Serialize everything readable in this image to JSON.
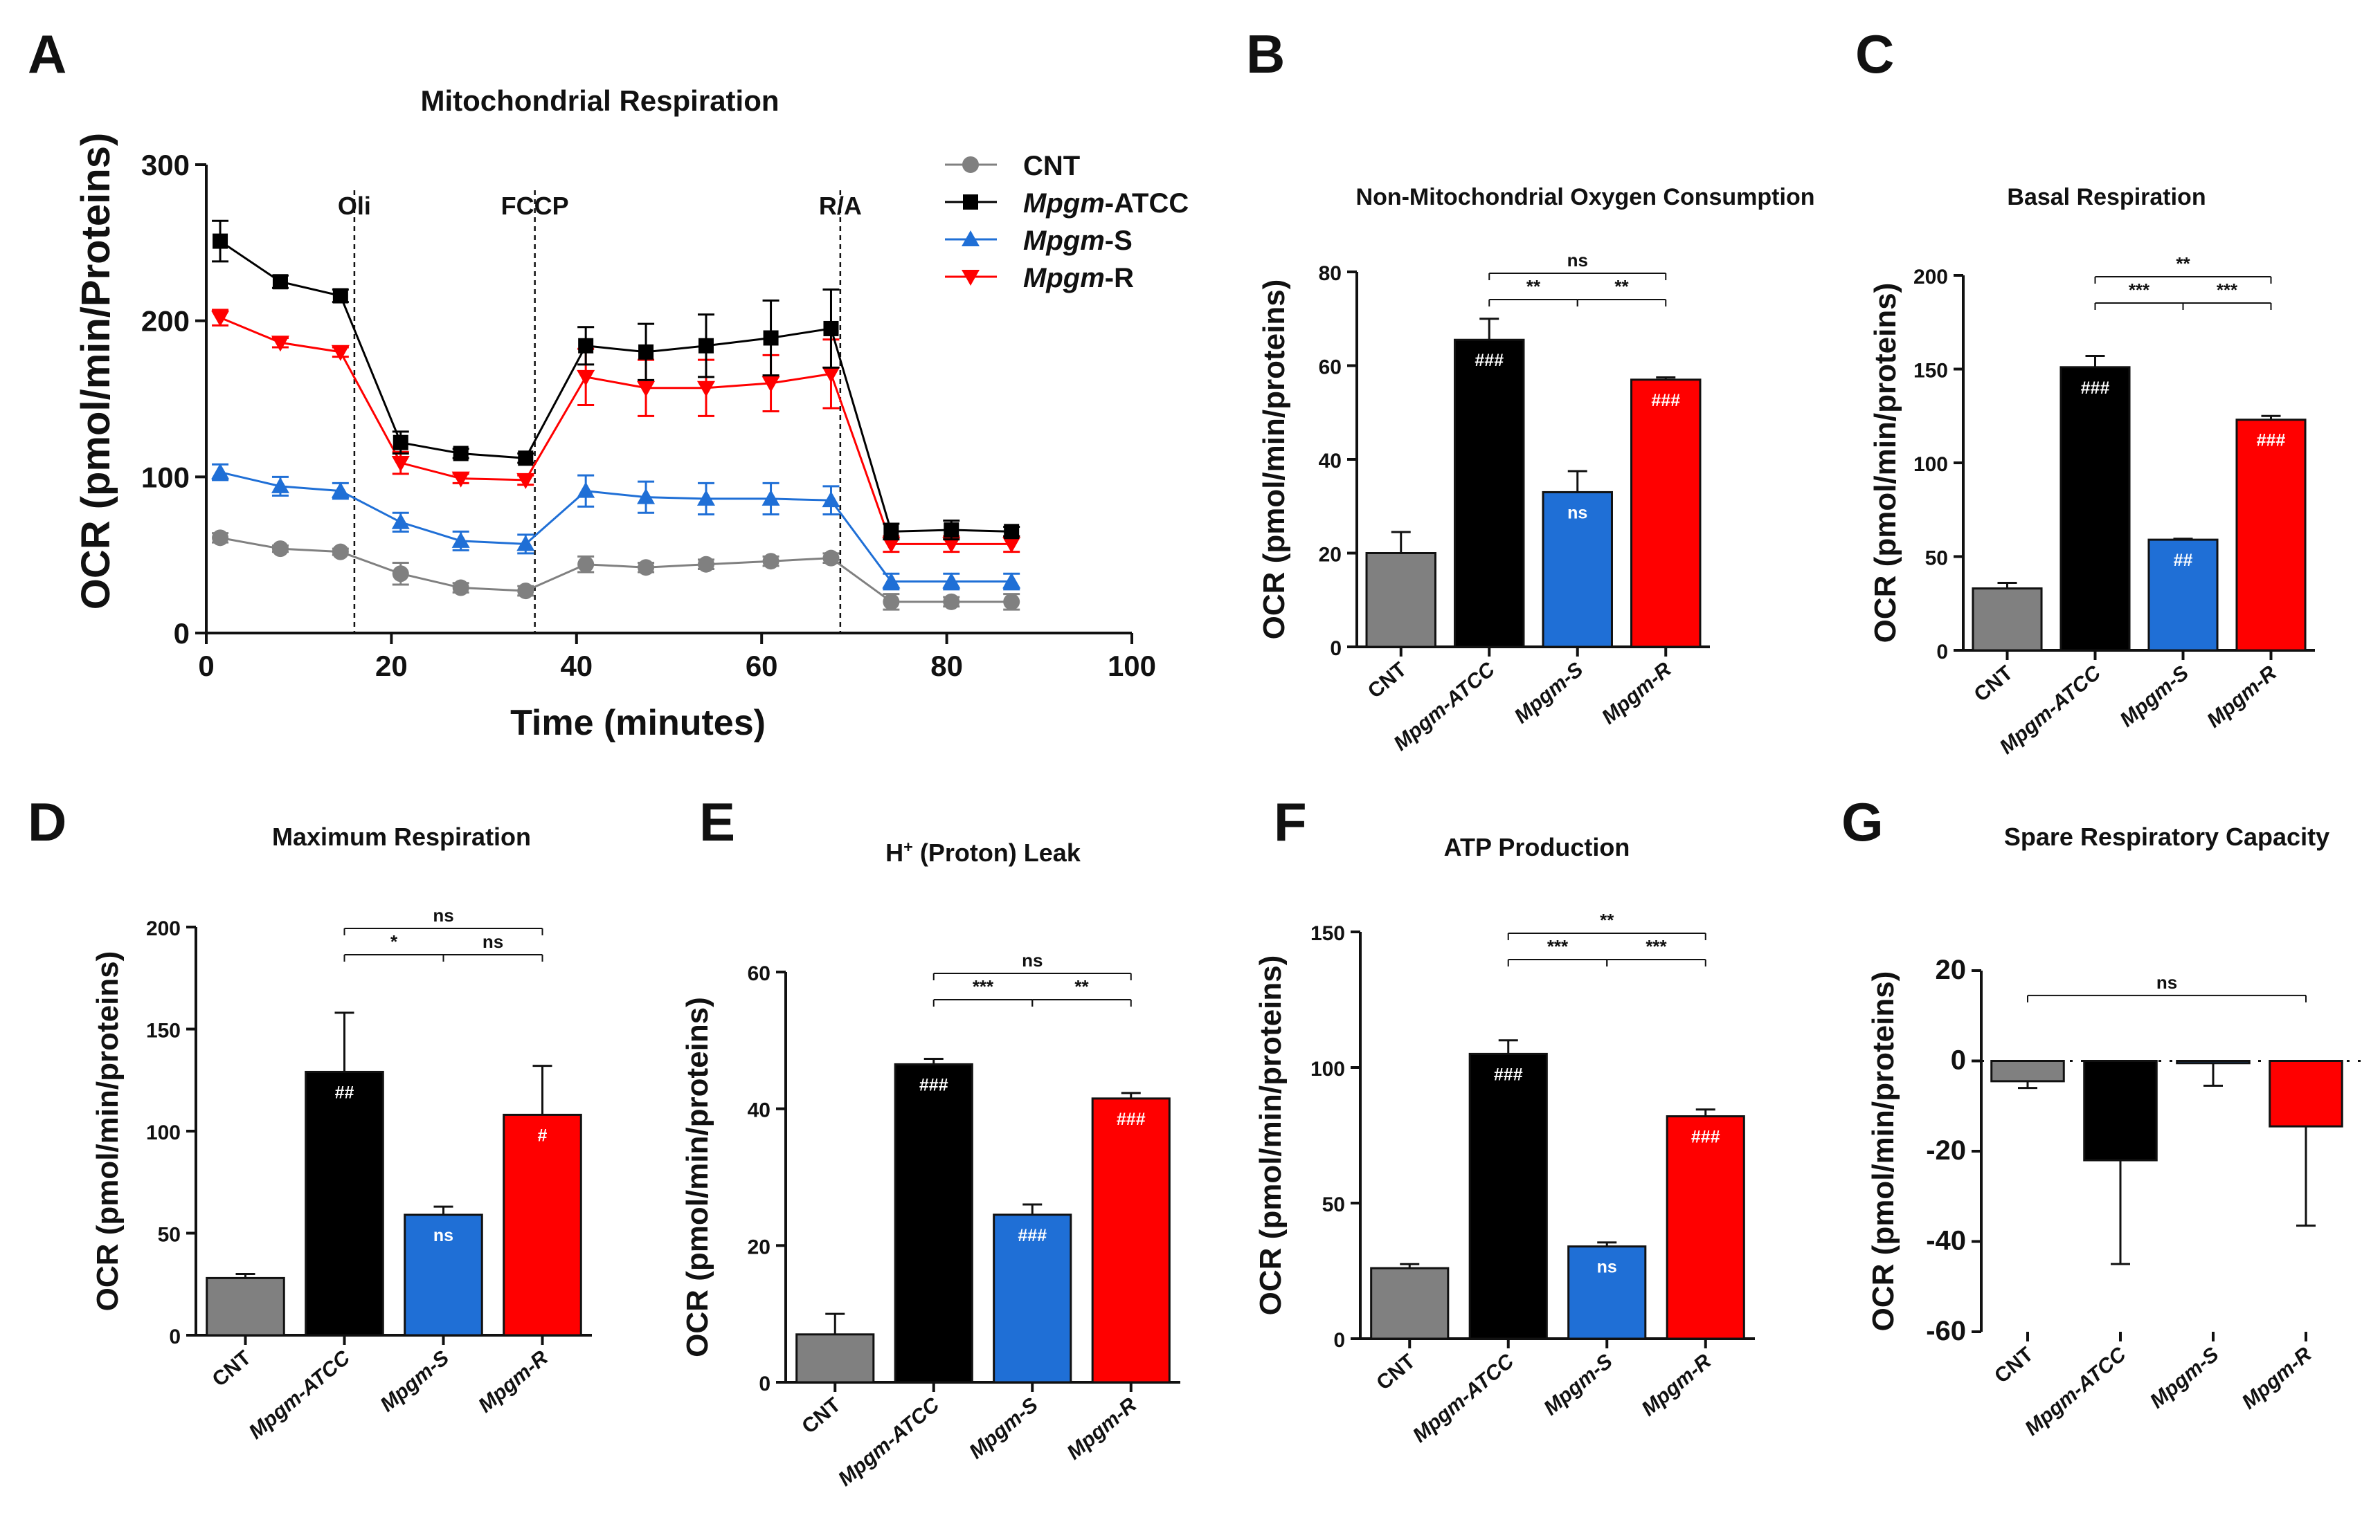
{
  "chart_data": [
    {
      "panel": "A",
      "type": "line",
      "title": "Mitochondrial Respiration",
      "xlabel": "Time (minutes)",
      "ylabel": "OCR (pmol/min/Proteins)",
      "xlim": [
        0,
        100
      ],
      "ylim": [
        0,
        300
      ],
      "xticks": [
        0,
        20,
        40,
        60,
        80,
        100
      ],
      "yticks": [
        0,
        100,
        200,
        300
      ],
      "legend_position": "top-right",
      "injections": [
        {
          "label": "Oli",
          "x": 16
        },
        {
          "label": "FCCP",
          "x": 35.5
        },
        {
          "label": "R/A",
          "x": 68.5
        }
      ],
      "x": [
        1.5,
        8,
        14.5,
        21,
        27.5,
        34.5,
        41,
        47.5,
        54,
        61,
        67.5,
        74,
        80.5,
        87
      ],
      "series": [
        {
          "name": "CNT",
          "name_italic": "",
          "name_rest": "CNT",
          "color": "#808080",
          "marker": "circle",
          "values": [
            61,
            54,
            52,
            38,
            29,
            27,
            44,
            42,
            44,
            46,
            48,
            20,
            20,
            20
          ],
          "errors": [
            3,
            2,
            2,
            7,
            3,
            3,
            5,
            3,
            3,
            3,
            3,
            5,
            3,
            5
          ]
        },
        {
          "name": "Mpgm-ATCC",
          "name_italic": "Mpgm",
          "name_rest": "-ATCC",
          "color": "#000000",
          "marker": "square",
          "values": [
            251,
            225,
            216,
            122,
            115,
            112,
            184,
            180,
            184,
            189,
            195,
            65,
            66,
            65
          ],
          "errors": [
            13,
            4,
            4,
            7,
            3,
            3,
            12,
            18,
            20,
            24,
            25,
            5,
            6,
            3
          ]
        },
        {
          "name": "Mpgm-S",
          "name_italic": "Mpgm",
          "name_rest": "-S",
          "color": "#1f6fd6",
          "marker": "triangle-up",
          "values": [
            103,
            94,
            91,
            71,
            59,
            57,
            91,
            87,
            86,
            86,
            85,
            33,
            33,
            33
          ],
          "errors": [
            5,
            6,
            5,
            6,
            6,
            6,
            10,
            10,
            10,
            10,
            9,
            5,
            5,
            5
          ]
        },
        {
          "name": "Mpgm-R",
          "name_italic": "Mpgm",
          "name_rest": "-R",
          "color": "#ff0000",
          "marker": "triangle-down",
          "values": [
            202,
            186,
            180,
            109,
            99,
            98,
            164,
            157,
            157,
            160,
            166,
            57,
            57,
            57
          ],
          "errors": [
            5,
            3,
            3,
            7,
            3,
            3,
            18,
            18,
            18,
            18,
            22,
            5,
            5,
            5
          ]
        }
      ]
    },
    {
      "panel": "B",
      "type": "bar",
      "title": "Non-Mitochondrial Oxygen Consumption",
      "ylabel": "OCR (pmol/min/proteins)",
      "ylim": [
        0,
        80
      ],
      "yticks": [
        0,
        20,
        40,
        60,
        80
      ],
      "categories": [
        "CNT",
        "Mpgm-ATCC",
        "Mpgm-S",
        "Mpgm-R"
      ],
      "values": [
        20,
        65.5,
        33,
        57
      ],
      "errors": [
        4.5,
        4.5,
        4.5,
        0.5
      ],
      "bar_labels": [
        "",
        "###",
        "ns",
        "###"
      ],
      "comparisons": [
        {
          "from": 2,
          "to": 3,
          "label": "**",
          "level": 0
        },
        {
          "from": 3,
          "to": 4,
          "label": "**",
          "level": 0
        },
        {
          "from": 2,
          "to": 4,
          "label": "ns",
          "level": 1
        }
      ]
    },
    {
      "panel": "C",
      "type": "bar",
      "title": "Basal Respiration",
      "ylabel": "OCR (pmol/min/proteins)",
      "ylim": [
        0,
        200
      ],
      "yticks": [
        0,
        50,
        100,
        150,
        200
      ],
      "categories": [
        "CNT",
        "Mpgm-ATCC",
        "Mpgm-S",
        "Mpgm-R"
      ],
      "values": [
        33,
        151,
        59,
        123
      ],
      "errors": [
        3,
        6,
        0.5,
        2
      ],
      "bar_labels": [
        "",
        "###",
        "##",
        "###"
      ],
      "comparisons": [
        {
          "from": 2,
          "to": 3,
          "label": "***",
          "level": 0
        },
        {
          "from": 3,
          "to": 4,
          "label": "***",
          "level": 0
        },
        {
          "from": 2,
          "to": 4,
          "label": "**",
          "level": 1
        }
      ]
    },
    {
      "panel": "D",
      "type": "bar",
      "title": "Maximum Respiration",
      "ylabel": "OCR (pmol/min/proteins)",
      "ylim": [
        0,
        200
      ],
      "yticks": [
        0,
        50,
        100,
        150,
        200
      ],
      "categories": [
        "CNT",
        "Mpgm-ATCC",
        "Mpgm-S",
        "Mpgm-R"
      ],
      "values": [
        28,
        129,
        59,
        108
      ],
      "errors": [
        2,
        29,
        4,
        24
      ],
      "bar_labels": [
        "",
        "##",
        "ns",
        "#"
      ],
      "comparisons": [
        {
          "from": 2,
          "to": 3,
          "label": "*",
          "level": 0
        },
        {
          "from": 3,
          "to": 4,
          "label": "ns",
          "level": 0
        },
        {
          "from": 2,
          "to": 4,
          "label": "ns",
          "level": 1
        }
      ]
    },
    {
      "panel": "E",
      "type": "bar",
      "title": "H+ (Proton) Leak",
      "title_main": "H",
      "title_sup": "+",
      "title_rest": " (Proton) Leak",
      "ylabel": "OCR (pmol/min/proteins)",
      "ylim": [
        0,
        60
      ],
      "yticks": [
        0,
        20,
        40,
        60
      ],
      "categories": [
        "CNT",
        "Mpgm-ATCC",
        "Mpgm-S",
        "Mpgm-R"
      ],
      "values": [
        7,
        46.5,
        24.5,
        41.5
      ],
      "errors": [
        3,
        0.8,
        1.5,
        0.8
      ],
      "bar_labels": [
        "",
        "###",
        "###",
        "###"
      ],
      "comparisons": [
        {
          "from": 2,
          "to": 3,
          "label": "***",
          "level": 0
        },
        {
          "from": 3,
          "to": 4,
          "label": "**",
          "level": 0
        },
        {
          "from": 2,
          "to": 4,
          "label": "ns",
          "level": 1
        }
      ]
    },
    {
      "panel": "F",
      "type": "bar",
      "title": "ATP Production",
      "ylabel": "OCR (pmol/min/proteins)",
      "ylim": [
        0,
        150
      ],
      "yticks": [
        0,
        50,
        100,
        150
      ],
      "categories": [
        "CNT",
        "Mpgm-ATCC",
        "Mpgm-S",
        "Mpgm-R"
      ],
      "values": [
        26,
        105,
        34,
        82
      ],
      "errors": [
        1.5,
        5,
        1.5,
        2.5
      ],
      "bar_labels": [
        "",
        "###",
        "ns",
        "###"
      ],
      "comparisons": [
        {
          "from": 2,
          "to": 3,
          "label": "***",
          "level": 0
        },
        {
          "from": 3,
          "to": 4,
          "label": "***",
          "level": 0
        },
        {
          "from": 2,
          "to": 4,
          "label": "**",
          "level": 1
        }
      ]
    },
    {
      "panel": "G",
      "type": "bar",
      "title": "Spare Respiratory Capacity",
      "ylabel": "OCR (pmol/min/proteins)",
      "ylim": [
        -60,
        20
      ],
      "yticks": [
        -60,
        -40,
        -20,
        0,
        20
      ],
      "categories": [
        "CNT",
        "Mpgm-ATCC",
        "Mpgm-S",
        "Mpgm-R"
      ],
      "values": [
        -4.5,
        -22,
        -0.5,
        -14.5
      ],
      "errors": [
        1.5,
        23,
        5,
        22
      ],
      "bar_labels": [
        "",
        "",
        "",
        ""
      ],
      "comparisons": [
        {
          "from": 1,
          "to": 4,
          "label": "ns",
          "level": 0,
          "at": 14.5
        }
      ]
    }
  ],
  "colors": {
    "CNT": "#808080",
    "Mpgm-ATCC": "#000000",
    "Mpgm-S": "#1f6fd6",
    "Mpgm-R": "#ff0000"
  }
}
